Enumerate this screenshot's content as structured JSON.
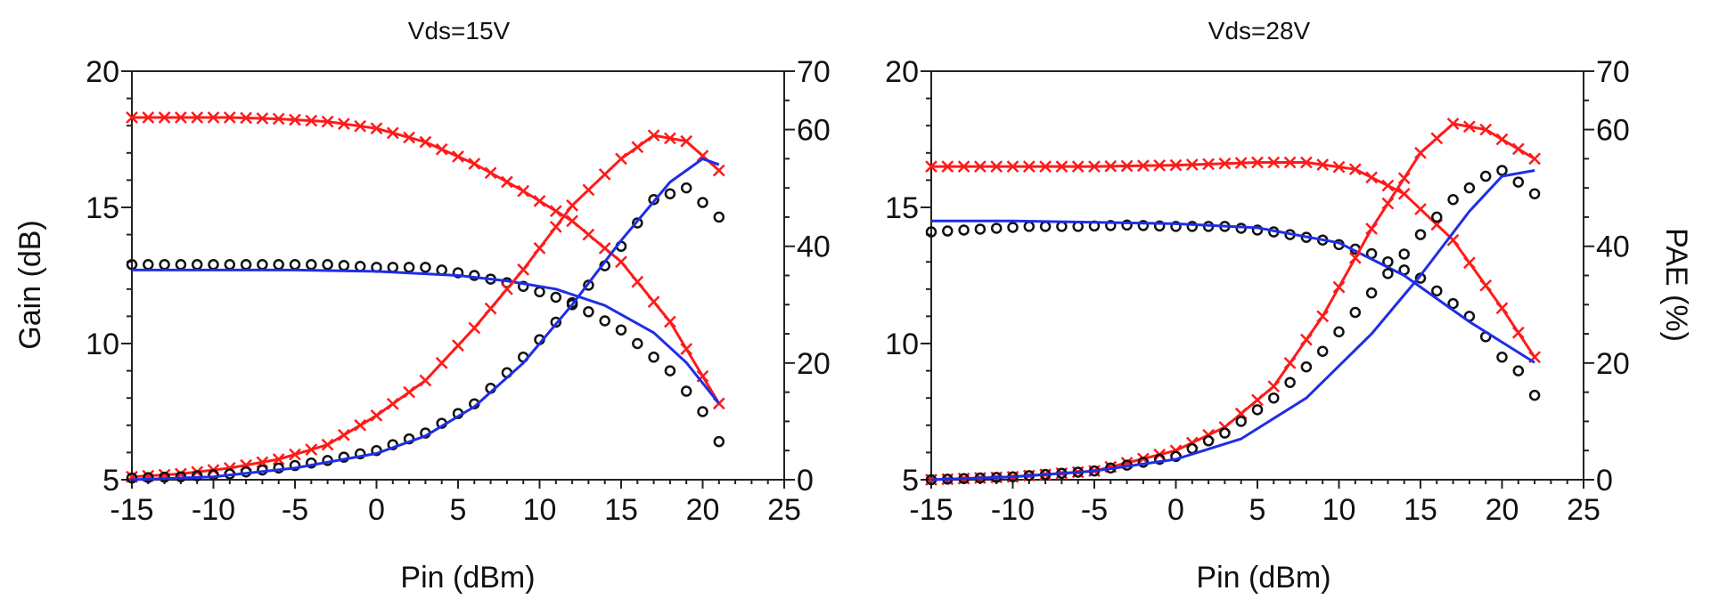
{
  "colors": {
    "red": "#ff1a1a",
    "blue": "#1f2ee6",
    "black": "#111111"
  },
  "chart_data": [
    {
      "type": "line",
      "title": "Vds=15V",
      "xlabel": "Pin (dBm)",
      "ylabel": "Gain (dB)",
      "y2label": "",
      "xlim": [
        -15,
        25
      ],
      "ylim": [
        5,
        20
      ],
      "y2lim": [
        0,
        70
      ],
      "xticks": [
        "-15",
        "-10",
        "-5",
        "0",
        "5",
        "10",
        "15",
        "20",
        "25"
      ],
      "yticks": [
        "5",
        "10",
        "15",
        "20"
      ],
      "y2ticks": [
        "0",
        "20",
        "40",
        "60",
        "70"
      ],
      "series": [
        {
          "axis": "left",
          "marker": "x",
          "color": "red",
          "x": [
            -15,
            -12,
            -9,
            -6,
            -3,
            0,
            3,
            6,
            9,
            12,
            15,
            18,
            21
          ],
          "y": [
            18.3,
            18.3,
            18.3,
            18.25,
            18.15,
            17.9,
            17.4,
            16.6,
            15.6,
            14.5,
            13.0,
            10.8,
            7.8
          ]
        },
        {
          "axis": "left",
          "marker": "o",
          "color": "black",
          "x": [
            -15,
            -12,
            -9,
            -6,
            -3,
            0,
            3,
            6,
            9,
            12,
            15,
            18,
            20,
            21
          ],
          "y": [
            12.9,
            12.9,
            12.9,
            12.9,
            12.9,
            12.8,
            12.8,
            12.5,
            12.1,
            11.5,
            10.5,
            9.0,
            7.5,
            6.4
          ]
        },
        {
          "axis": "left",
          "marker": "line",
          "color": "blue",
          "x": [
            -15,
            -10,
            -5,
            0,
            5,
            8,
            11,
            14,
            17,
            19,
            21
          ],
          "y": [
            12.7,
            12.7,
            12.7,
            12.65,
            12.5,
            12.3,
            12.0,
            11.4,
            10.4,
            9.3,
            7.8
          ]
        },
        {
          "axis": "right",
          "marker": "x",
          "color": "red",
          "x": [
            -15,
            -12,
            -9,
            -6,
            -3,
            0,
            3,
            6,
            9,
            12,
            15,
            17,
            19,
            21
          ],
          "y": [
            0.5,
            1,
            2,
            3.5,
            6,
            11,
            17,
            26,
            36,
            47,
            55,
            59,
            58,
            53
          ]
        },
        {
          "axis": "right",
          "marker": "o",
          "color": "black",
          "x": [
            -15,
            -12,
            -9,
            -6,
            -3,
            0,
            3,
            6,
            9,
            12,
            15,
            17,
            19,
            21
          ],
          "y": [
            0.3,
            0.5,
            1,
            2,
            3.3,
            5,
            8,
            13,
            21,
            30,
            40,
            48,
            50,
            45
          ]
        },
        {
          "axis": "right",
          "marker": "line",
          "color": "blue",
          "x": [
            -15,
            -10,
            -5,
            0,
            3,
            6,
            9,
            12,
            15,
            18,
            20,
            21
          ],
          "y": [
            0,
            0.5,
            2,
            4.5,
            7.5,
            12.5,
            20,
            30,
            41,
            51,
            55,
            54
          ]
        }
      ]
    },
    {
      "type": "line",
      "title": "Vds=28V",
      "xlabel": "Pin (dBm)",
      "ylabel": "",
      "y2label": "PAE (%)",
      "xlim": [
        -15,
        25
      ],
      "ylim": [
        5,
        20
      ],
      "y2lim": [
        0,
        70
      ],
      "xticks": [
        "-15",
        "-10",
        "-5",
        "0",
        "5",
        "10",
        "15",
        "20",
        "25"
      ],
      "yticks": [
        "5",
        "10",
        "15",
        "20"
      ],
      "y2ticks": [
        "0",
        "20",
        "40",
        "60",
        "70"
      ],
      "series": [
        {
          "axis": "left",
          "marker": "x",
          "color": "red",
          "x": [
            -15,
            -10,
            -5,
            0,
            5,
            8,
            11,
            14,
            17,
            20,
            22
          ],
          "y": [
            16.5,
            16.5,
            16.5,
            16.55,
            16.65,
            16.65,
            16.4,
            15.5,
            13.8,
            11.3,
            9.5
          ]
        },
        {
          "axis": "left",
          "marker": "o",
          "color": "black",
          "x": [
            -15,
            -12,
            -9,
            -6,
            -3,
            0,
            3,
            6,
            9,
            12,
            15,
            18,
            20,
            21,
            22
          ],
          "y": [
            14.1,
            14.2,
            14.3,
            14.3,
            14.35,
            14.3,
            14.3,
            14.1,
            13.8,
            13.3,
            12.4,
            11.0,
            9.5,
            9.0,
            8.1
          ]
        },
        {
          "axis": "left",
          "marker": "line",
          "color": "blue",
          "x": [
            -15,
            -10,
            -5,
            0,
            5,
            10,
            14,
            18,
            22
          ],
          "y": [
            14.5,
            14.5,
            14.45,
            14.4,
            14.25,
            13.7,
            12.5,
            10.8,
            9.3
          ]
        },
        {
          "axis": "right",
          "marker": "x",
          "color": "red",
          "x": [
            -15,
            -10,
            -5,
            0,
            3,
            6,
            9,
            12,
            15,
            17,
            19,
            22
          ],
          "y": [
            0,
            0.5,
            1.5,
            5,
            9,
            16,
            28,
            43,
            56,
            61,
            60,
            55
          ]
        },
        {
          "axis": "right",
          "marker": "o",
          "color": "black",
          "x": [
            -15,
            -10,
            -5,
            0,
            3,
            6,
            9,
            12,
            15,
            17,
            19,
            20,
            21,
            22
          ],
          "y": [
            0,
            0.5,
            1.5,
            4,
            8,
            14,
            22,
            32,
            42,
            48,
            52,
            53,
            51,
            49
          ]
        },
        {
          "axis": "right",
          "marker": "line",
          "color": "blue",
          "x": [
            -15,
            -10,
            -5,
            0,
            4,
            8,
            12,
            15,
            18,
            20,
            22
          ],
          "y": [
            0,
            0.5,
            1.5,
            3.5,
            7,
            14,
            25,
            35,
            46,
            52,
            53
          ]
        }
      ]
    }
  ]
}
